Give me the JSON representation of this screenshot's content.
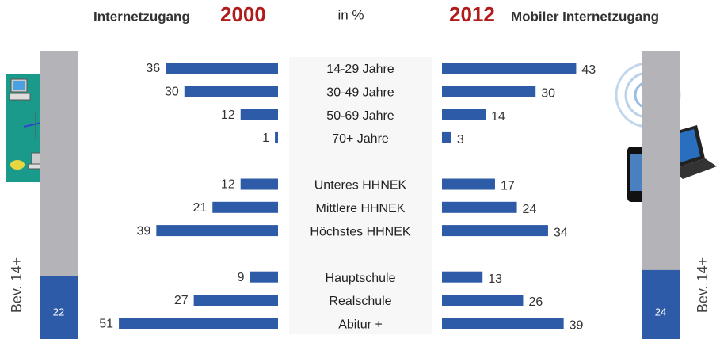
{
  "chart_data": {
    "type": "butterfly",
    "left_title": "Internetzugang",
    "unit": "in %",
    "right_title": "Mobiler Internetzugang",
    "categories": [
      "14-29 Jahre",
      "30-49 Jahre",
      "50-69 Jahre",
      "70+ Jahre",
      null,
      "Unteres HHNEK",
      "Mittlere HHNEK",
      "Höchstes HHNEK",
      null,
      "Hauptschule",
      "Realschule",
      "Abitur +"
    ],
    "series": [
      {
        "name": "2000",
        "color": "#2e5ba8",
        "values": [
          36,
          30,
          12,
          1,
          null,
          12,
          21,
          39,
          null,
          9,
          27,
          51
        ]
      },
      {
        "name": "2012",
        "color": "#2e5ba8",
        "values": [
          43,
          30,
          14,
          3,
          null,
          17,
          24,
          34,
          null,
          13,
          26,
          39
        ]
      }
    ],
    "population": {
      "label": "Bev. 14+",
      "values": [
        22,
        24
      ],
      "color": "#2e5ba8",
      "rest_color": "#b4b4b8",
      "ylim": [
        0,
        100
      ]
    }
  }
}
